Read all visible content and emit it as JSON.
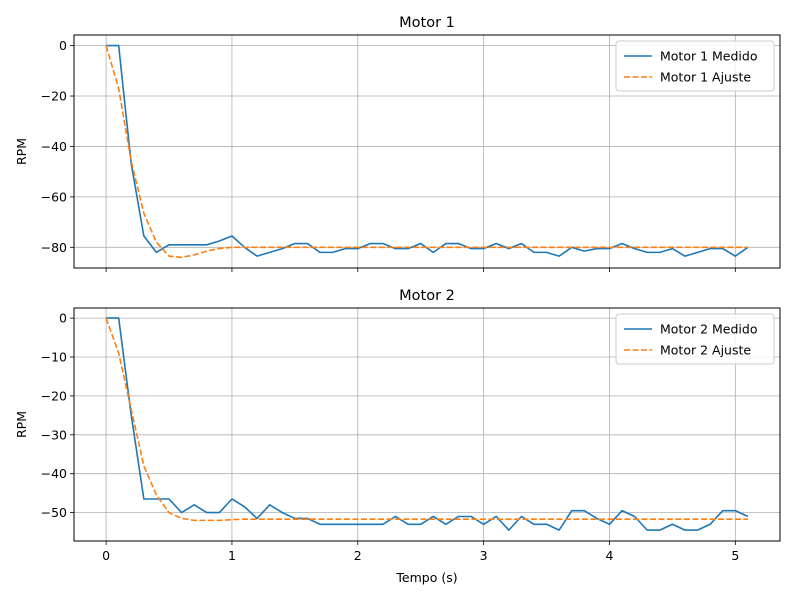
{
  "chart_data": [
    {
      "type": "line",
      "title": "Motor 1",
      "xlabel": "",
      "ylabel": "RPM",
      "xlim": [
        -0.255,
        5.355
      ],
      "ylim": [
        -88.2,
        4.2
      ],
      "xticks": [
        0,
        1,
        2,
        3,
        4,
        5
      ],
      "xtick_labels": [
        "",
        "",
        "",
        "",
        "",
        ""
      ],
      "yticks": [
        0,
        -20,
        -40,
        -60,
        -80
      ],
      "ytick_labels": [
        "0",
        "−20",
        "−40",
        "−60",
        "−80"
      ],
      "grid": true,
      "legend_position": "upper right",
      "x": [
        0.0,
        0.1,
        0.2,
        0.3,
        0.4,
        0.5,
        0.6,
        0.7,
        0.8,
        0.9,
        1.0,
        1.1,
        1.2,
        1.3,
        1.4,
        1.5,
        1.6,
        1.7,
        1.8,
        1.9,
        2.0,
        2.1,
        2.2,
        2.3,
        2.4,
        2.5,
        2.6,
        2.7,
        2.8,
        2.9,
        3.0,
        3.1,
        3.2,
        3.3,
        3.4,
        3.5,
        3.6,
        3.7,
        3.8,
        3.9,
        4.0,
        4.1,
        4.2,
        4.3,
        4.4,
        4.5,
        4.6,
        4.7,
        4.8,
        4.9,
        5.0,
        5.1
      ],
      "series": [
        {
          "name": "Motor 1 Medido",
          "color": "#1f77b4",
          "style": "solid",
          "values": [
            0,
            0,
            -47,
            -75.5,
            -82,
            -79,
            -79,
            -79,
            -79,
            -77.5,
            -75.5,
            -80,
            -83.5,
            -82,
            -80.5,
            -78.5,
            -78.5,
            -82,
            -82,
            -80.5,
            -80.5,
            -78.5,
            -78.5,
            -80.5,
            -80.5,
            -78.5,
            -82,
            -78.5,
            -78.5,
            -80.5,
            -80.5,
            -78.5,
            -80.5,
            -78.5,
            -82,
            -82,
            -83.5,
            -80,
            -81.5,
            -80.5,
            -80.5,
            -78.5,
            -80.5,
            -82,
            -82,
            -80.5,
            -83.5,
            -82,
            -80.5,
            -80.5,
            -83.5,
            -80
          ]
        },
        {
          "name": "Motor 1 Ajuste",
          "color": "#ff7f0e",
          "style": "dashed",
          "values": [
            0,
            -17,
            -46,
            -66.5,
            -78,
            -83.5,
            -84,
            -83,
            -81.5,
            -80.5,
            -80,
            -80,
            -80,
            -80,
            -80,
            -80,
            -80,
            -80,
            -80,
            -80,
            -80,
            -80,
            -80,
            -80,
            -80,
            -80,
            -80,
            -80,
            -80,
            -80,
            -80,
            -80,
            -80,
            -80,
            -80,
            -80,
            -80,
            -80,
            -80,
            -80,
            -80,
            -80,
            -80,
            -80,
            -80,
            -80,
            -80,
            -80,
            -80,
            -80,
            -80,
            -80
          ]
        }
      ]
    },
    {
      "type": "line",
      "title": "Motor 2",
      "xlabel": "Tempo (s)",
      "ylabel": "RPM",
      "xlim": [
        -0.255,
        5.355
      ],
      "ylim": [
        -57.3,
        2.6
      ],
      "xticks": [
        0,
        1,
        2,
        3,
        4,
        5
      ],
      "xtick_labels": [
        "0",
        "1",
        "2",
        "3",
        "4",
        "5"
      ],
      "yticks": [
        0,
        -10,
        -20,
        -30,
        -40,
        -50
      ],
      "ytick_labels": [
        "0",
        "−10",
        "−20",
        "−30",
        "−40",
        "−50"
      ],
      "grid": true,
      "legend_position": "upper right",
      "x": [
        0.0,
        0.1,
        0.2,
        0.3,
        0.4,
        0.5,
        0.6,
        0.7,
        0.8,
        0.9,
        1.0,
        1.1,
        1.2,
        1.3,
        1.4,
        1.5,
        1.6,
        1.7,
        1.8,
        1.9,
        2.0,
        2.1,
        2.2,
        2.3,
        2.4,
        2.5,
        2.6,
        2.7,
        2.8,
        2.9,
        3.0,
        3.1,
        3.2,
        3.3,
        3.4,
        3.5,
        3.6,
        3.7,
        3.8,
        3.9,
        4.0,
        4.1,
        4.2,
        4.3,
        4.4,
        4.5,
        4.6,
        4.7,
        4.8,
        4.9,
        5.0,
        5.1
      ],
      "series": [
        {
          "name": "Motor 2 Medido",
          "color": "#1f77b4",
          "style": "solid",
          "values": [
            0,
            0,
            -25,
            -46.5,
            -46.5,
            -46.5,
            -50,
            -48,
            -50,
            -50,
            -46.5,
            -48.5,
            -51.5,
            -48,
            -50,
            -51.5,
            -51.5,
            -53,
            -53,
            -53,
            -53,
            -53,
            -53,
            -51,
            -53,
            -53,
            -51,
            -53,
            -51,
            -51,
            -53,
            -51,
            -54.5,
            -51,
            -53,
            -53,
            -54.5,
            -49.5,
            -49.5,
            -51.5,
            -53,
            -49.5,
            -51,
            -54.5,
            -54.5,
            -53,
            -54.5,
            -54.5,
            -53,
            -49.5,
            -49.5,
            -51
          ]
        },
        {
          "name": "Motor 2 Ajuste",
          "color": "#ff7f0e",
          "style": "dashed",
          "values": [
            0,
            -9,
            -23.5,
            -38,
            -45.5,
            -50,
            -51.5,
            -52,
            -52,
            -52,
            -51.8,
            -51.7,
            -51.7,
            -51.7,
            -51.7,
            -51.7,
            -51.7,
            -51.7,
            -51.7,
            -51.7,
            -51.7,
            -51.7,
            -51.7,
            -51.7,
            -51.7,
            -51.7,
            -51.7,
            -51.7,
            -51.7,
            -51.7,
            -51.7,
            -51.7,
            -51.7,
            -51.7,
            -51.7,
            -51.7,
            -51.7,
            -51.7,
            -51.7,
            -51.7,
            -51.7,
            -51.7,
            -51.7,
            -51.7,
            -51.7,
            -51.7,
            -51.7,
            -51.7,
            -51.7,
            -51.7,
            -51.7,
            -51.7
          ]
        }
      ]
    }
  ]
}
